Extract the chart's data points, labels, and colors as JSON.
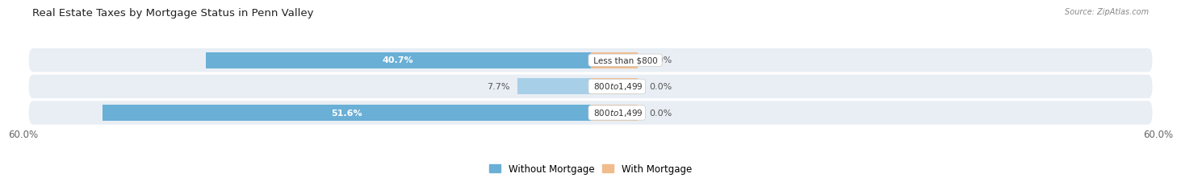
{
  "title": "Real Estate Taxes by Mortgage Status in Penn Valley",
  "source": "Source: ZipAtlas.com",
  "rows": [
    {
      "label": "Less than $800",
      "without_mortgage": 40.7,
      "with_mortgage": 0.0
    },
    {
      "label": "$800 to $1,499",
      "without_mortgage": 7.7,
      "with_mortgage": 0.0
    },
    {
      "label": "$800 to $1,499",
      "without_mortgage": 51.6,
      "with_mortgage": 0.0
    }
  ],
  "max_val": 60.0,
  "color_without": "#6AAFD6",
  "color_without_light": "#A8CFE8",
  "color_with": "#F0BC8C",
  "bg_bar": "#E8EEF4",
  "bg_fig": "#FFFFFF",
  "title_fontsize": 9.5,
  "tick_fontsize": 8.5,
  "label_fontsize": 8,
  "bar_height": 0.62,
  "wm_bar_width": 5.0,
  "legend_color_without": "#6AAFD6",
  "legend_color_with": "#F0BC8C"
}
